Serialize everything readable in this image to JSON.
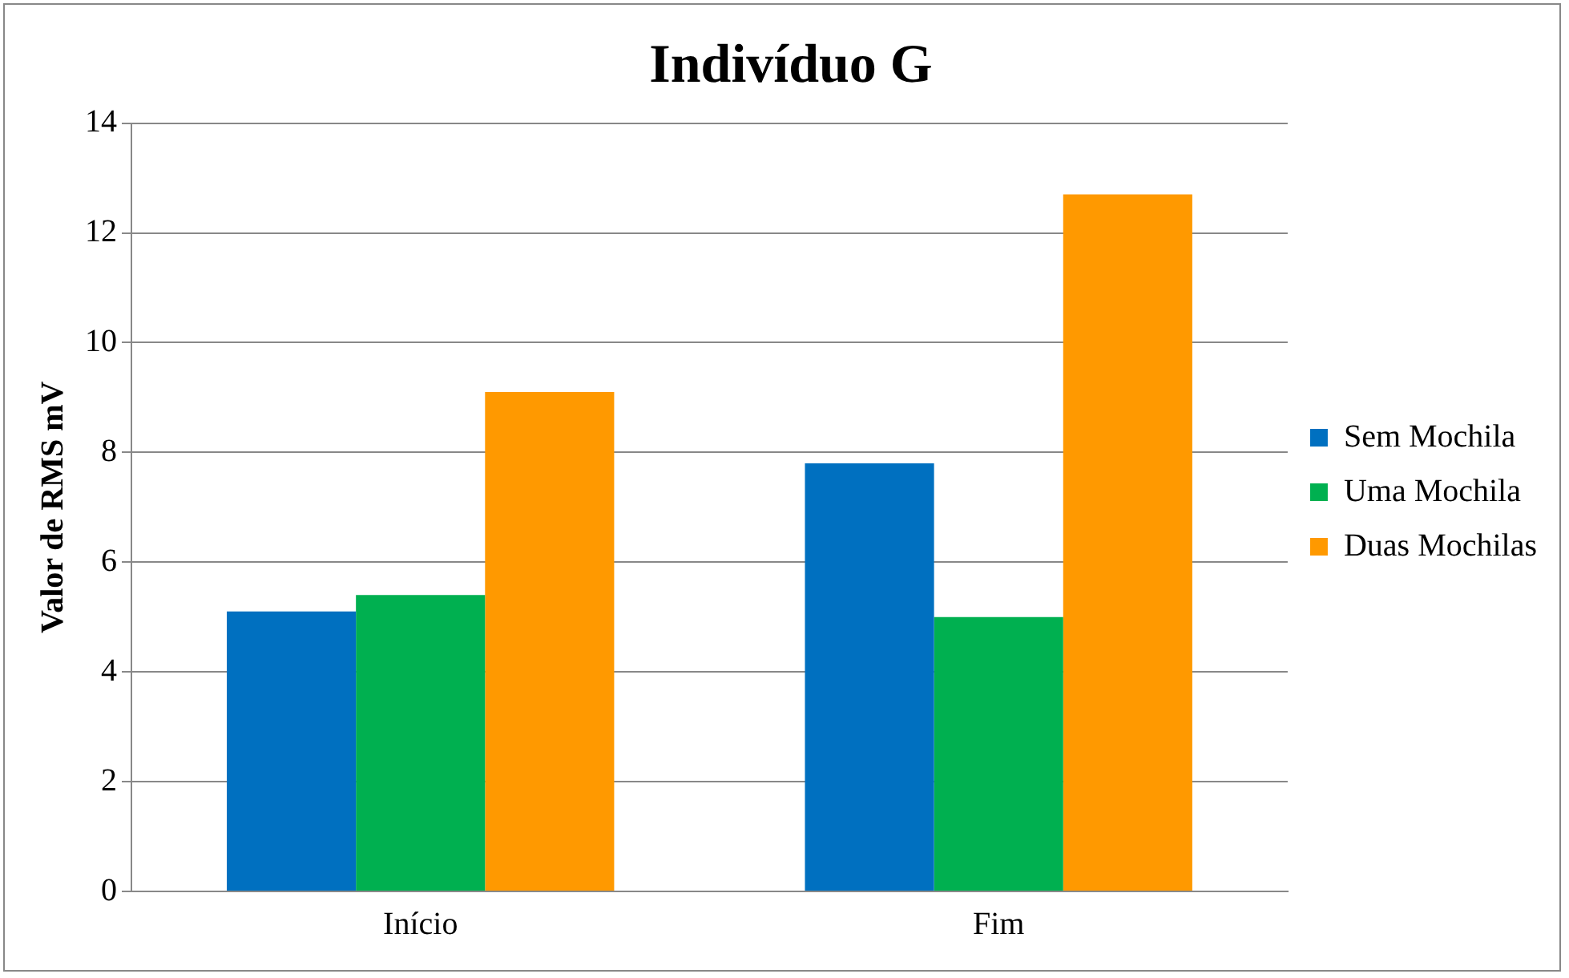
{
  "chart_data": {
    "type": "bar",
    "title": "Indivíduo G",
    "ylabel": "Valor de RMS mV",
    "categories": [
      "Início",
      "Fim"
    ],
    "series": [
      {
        "name": "Sem Mochila",
        "color": "#0070c0",
        "values": [
          5.1,
          7.8
        ]
      },
      {
        "name": "Uma Mochila",
        "color": "#00b050",
        "values": [
          5.4,
          5.0
        ]
      },
      {
        "name": "Duas Mochilas",
        "color": "#ff9900",
        "values": [
          9.1,
          12.7
        ]
      }
    ],
    "ylim": [
      0,
      14
    ],
    "yticks": [
      0,
      2,
      4,
      6,
      8,
      10,
      12,
      14
    ],
    "grid": "y",
    "legend": "right"
  }
}
